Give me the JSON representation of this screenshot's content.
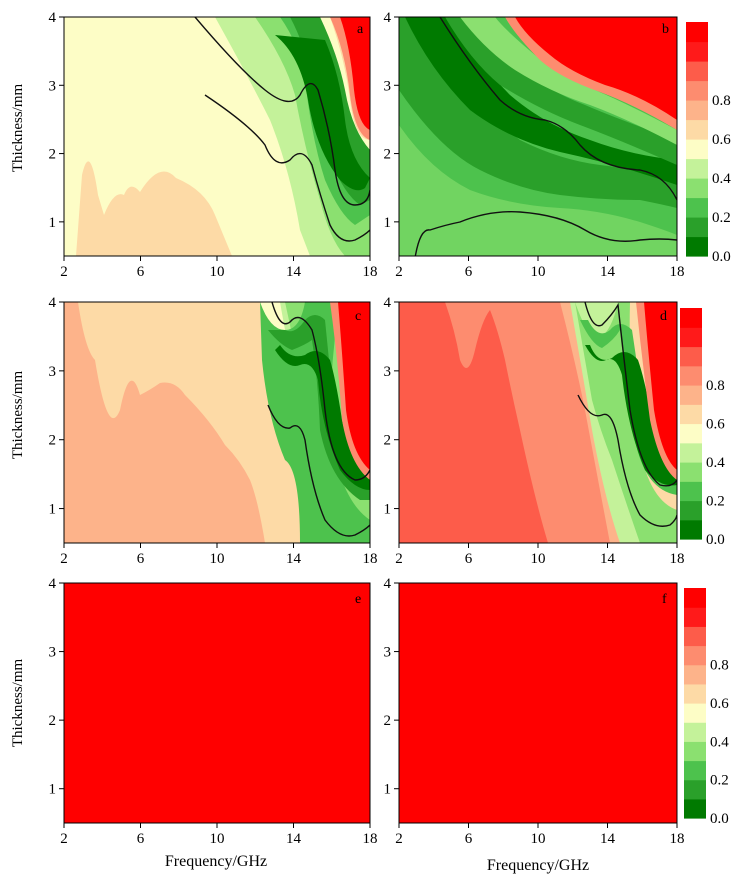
{
  "colorbar": {
    "ticks": [
      "0.0",
      "0.2",
      "0.4",
      "0.6",
      "0.8"
    ],
    "levels": [
      "#007a00",
      "#2aa02a",
      "#4dc24d",
      "#8be070",
      "#c4f29a",
      "#fdfdc6",
      "#fddaa6",
      "#fdb38a",
      "#fd8c6f",
      "#fd5c4a",
      "#ff1a1a",
      "#ff0000"
    ]
  },
  "axes": {
    "ylabel": "Thickness/mm",
    "xlabel": "Frequency/GHz",
    "xticks": [
      "2",
      "6",
      "10",
      "14",
      "18"
    ],
    "yticks": [
      "1",
      "2",
      "3",
      "4"
    ],
    "xlim": [
      2,
      18
    ],
    "ylim": [
      0.5,
      4
    ]
  },
  "chart_data": [
    {
      "type": "heatmap",
      "panel_label": "a",
      "x_range": [
        2,
        18
      ],
      "y_range": [
        0.5,
        4
      ],
      "background_level": 0.55,
      "features": "absorption band (low values) shifting from ~11 GHz at 4 mm to ~17.5 GHz at 1 mm; red region at high frequency/high thickness"
    },
    {
      "type": "heatmap",
      "panel_label": "b",
      "x_range": [
        2,
        18
      ],
      "y_range": [
        0.5,
        4
      ],
      "background_level": 0.3,
      "features": "broad low-value band from ~3 GHz at 4 mm to 18 GHz at 1 mm; red region above"
    },
    {
      "type": "heatmap",
      "panel_label": "c",
      "x_range": [
        2,
        18
      ],
      "y_range": [
        0.5,
        4
      ],
      "background_level": 0.65,
      "features": "narrow absorption band near 13-18 GHz; red region top right"
    },
    {
      "type": "heatmap",
      "panel_label": "d",
      "x_range": [
        2,
        18
      ],
      "y_range": [
        0.5,
        4
      ],
      "background_level": 0.8,
      "features": "narrow absorption band near 13-18 GHz on mostly red background"
    },
    {
      "type": "heatmap",
      "panel_label": "e",
      "x_range": [
        2,
        18
      ],
      "y_range": [
        0.5,
        4
      ],
      "background_level": 1.0,
      "features": "uniform red"
    },
    {
      "type": "heatmap",
      "panel_label": "f",
      "x_range": [
        2,
        18
      ],
      "y_range": [
        0.5,
        4
      ],
      "background_level": 1.0,
      "features": "uniform red"
    }
  ]
}
